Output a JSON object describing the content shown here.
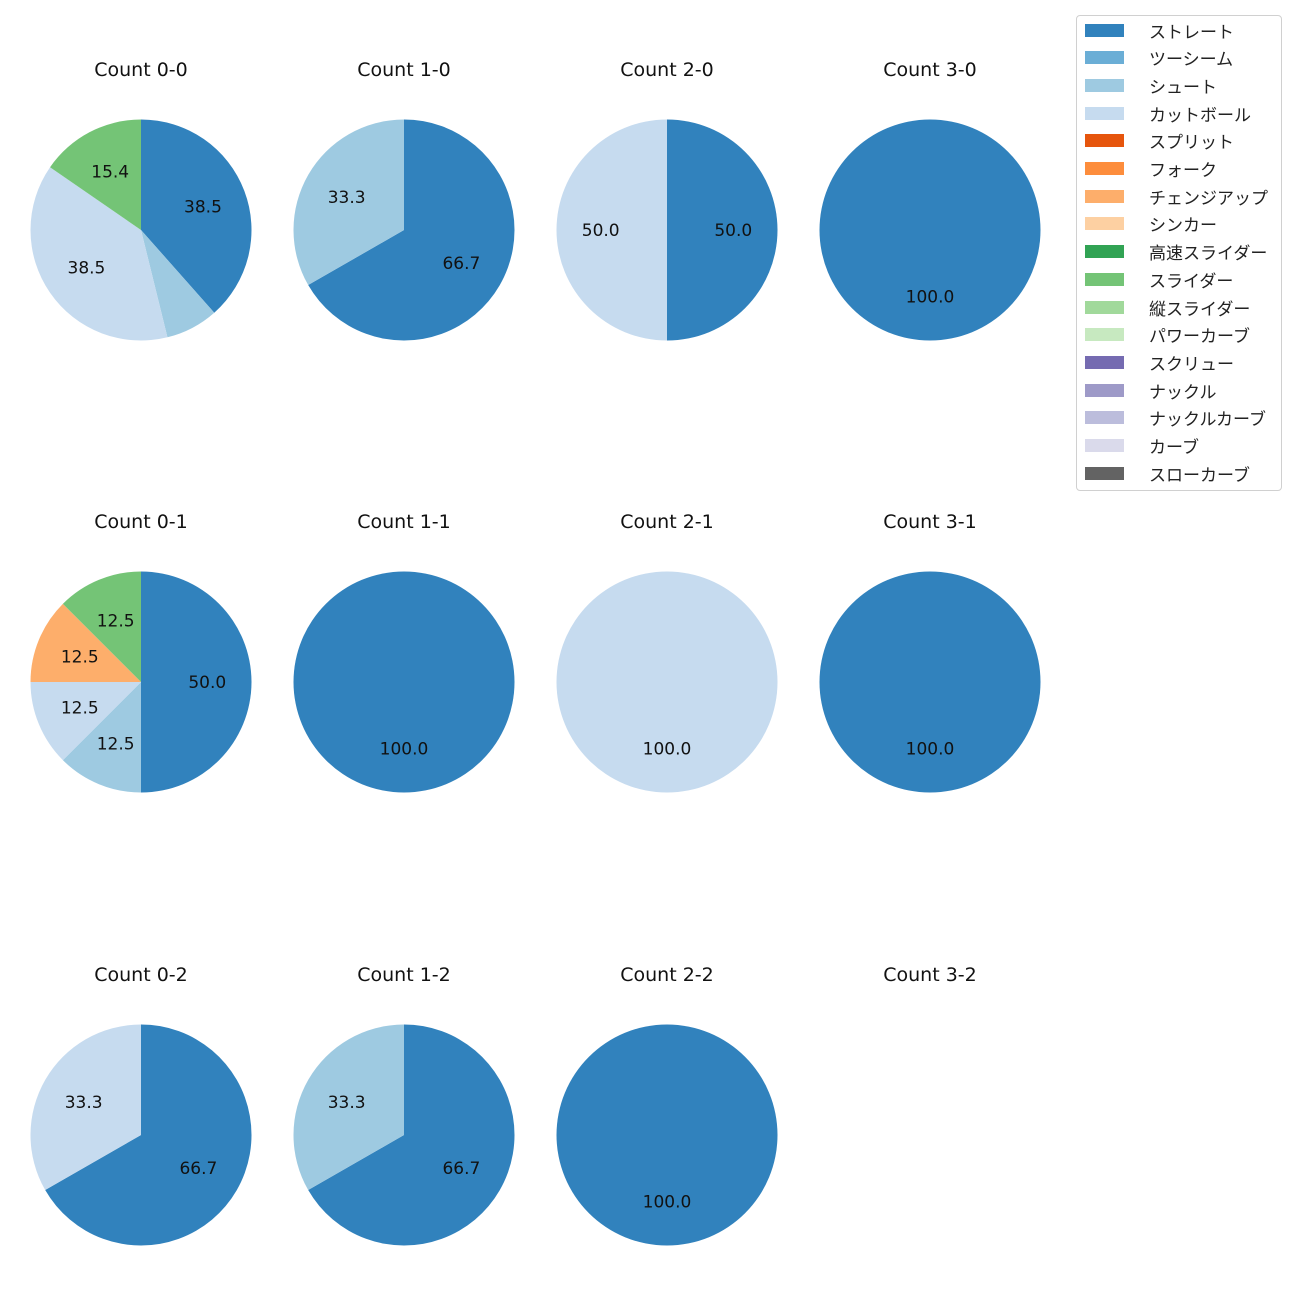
{
  "chart_data": {
    "type": "pie",
    "categories": [
      "ストレート",
      "ツーシーム",
      "シュート",
      "カットボール",
      "スプリット",
      "フォーク",
      "チェンジアップ",
      "シンカー",
      "高速スライダー",
      "スライダー",
      "縦スライダー",
      "パワーカーブ",
      "スクリュー",
      "ナックル",
      "ナックルカーブ",
      "カーブ",
      "スローカーブ"
    ],
    "colors": [
      "#3182bd",
      "#6baed6",
      "#9ecae1",
      "#c6dbef",
      "#e6550d",
      "#fd8d3c",
      "#fdae6b",
      "#fdd0a2",
      "#31a354",
      "#74c476",
      "#a1d99b",
      "#c7e9c0",
      "#756bb1",
      "#9e9ac8",
      "#bcbddc",
      "#dadaeb",
      "#636363"
    ],
    "legend_position": "top-right",
    "start": "top, clockwise",
    "charts": [
      {
        "title": "Count 0-0",
        "slices": [
          {
            "category": "ストレート",
            "value": 38.5,
            "label": "38.5"
          },
          {
            "category": "シュート",
            "value": 7.7,
            "label": ""
          },
          {
            "category": "カットボール",
            "value": 38.5,
            "label": "38.5"
          },
          {
            "category": "スライダー",
            "value": 15.4,
            "label": "15.4"
          }
        ]
      },
      {
        "title": "Count 1-0",
        "slices": [
          {
            "category": "ストレート",
            "value": 66.7,
            "label": "66.7"
          },
          {
            "category": "シュート",
            "value": 33.3,
            "label": "33.3"
          }
        ]
      },
      {
        "title": "Count 2-0",
        "slices": [
          {
            "category": "ストレート",
            "value": 50.0,
            "label": "50.0"
          },
          {
            "category": "カットボール",
            "value": 50.0,
            "label": "50.0"
          }
        ]
      },
      {
        "title": "Count 3-0",
        "slices": [
          {
            "category": "ストレート",
            "value": 100.0,
            "label": "100.0"
          }
        ]
      },
      {
        "title": "Count 0-1",
        "slices": [
          {
            "category": "ストレート",
            "value": 50.0,
            "label": "50.0"
          },
          {
            "category": "シュート",
            "value": 12.5,
            "label": "12.5"
          },
          {
            "category": "カットボール",
            "value": 12.5,
            "label": "12.5"
          },
          {
            "category": "チェンジアップ",
            "value": 12.5,
            "label": "12.5"
          },
          {
            "category": "スライダー",
            "value": 12.5,
            "label": "12.5"
          }
        ]
      },
      {
        "title": "Count 1-1",
        "slices": [
          {
            "category": "ストレート",
            "value": 100.0,
            "label": "100.0"
          }
        ]
      },
      {
        "title": "Count 2-1",
        "slices": [
          {
            "category": "カットボール",
            "value": 100.0,
            "label": "100.0"
          }
        ]
      },
      {
        "title": "Count 3-1",
        "slices": [
          {
            "category": "ストレート",
            "value": 100.0,
            "label": "100.0"
          }
        ]
      },
      {
        "title": "Count 0-2",
        "slices": [
          {
            "category": "ストレート",
            "value": 66.7,
            "label": "66.7"
          },
          {
            "category": "カットボール",
            "value": 33.3,
            "label": "33.3"
          }
        ]
      },
      {
        "title": "Count 1-2",
        "slices": [
          {
            "category": "ストレート",
            "value": 66.7,
            "label": "66.7"
          },
          {
            "category": "シュート",
            "value": 33.3,
            "label": "33.3"
          }
        ]
      },
      {
        "title": "Count 2-2",
        "slices": [
          {
            "category": "ストレート",
            "value": 100.0,
            "label": "100.0"
          }
        ]
      },
      {
        "title": "Count 3-2",
        "slices": []
      }
    ]
  }
}
